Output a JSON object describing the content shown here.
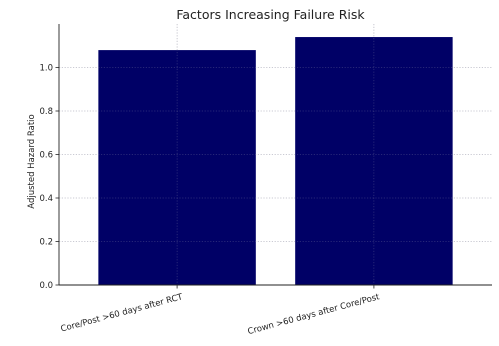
{
  "chart_data": {
    "type": "bar",
    "title": "Factors Increasing Failure Risk",
    "xlabel": "",
    "ylabel": "Adjusted Hazard Ratio",
    "categories": [
      "Core/Post >60 days after RCT",
      "Crown >60 days after Core/Post"
    ],
    "values": [
      1.08,
      1.14
    ],
    "ylim": [
      0,
      1.2
    ],
    "yticks": [
      "0.0",
      "0.2",
      "0.4",
      "0.6",
      "0.8",
      "1.0"
    ],
    "bar_color": "#000066",
    "grid": true,
    "grid_style": "dotted",
    "legend": "none"
  }
}
